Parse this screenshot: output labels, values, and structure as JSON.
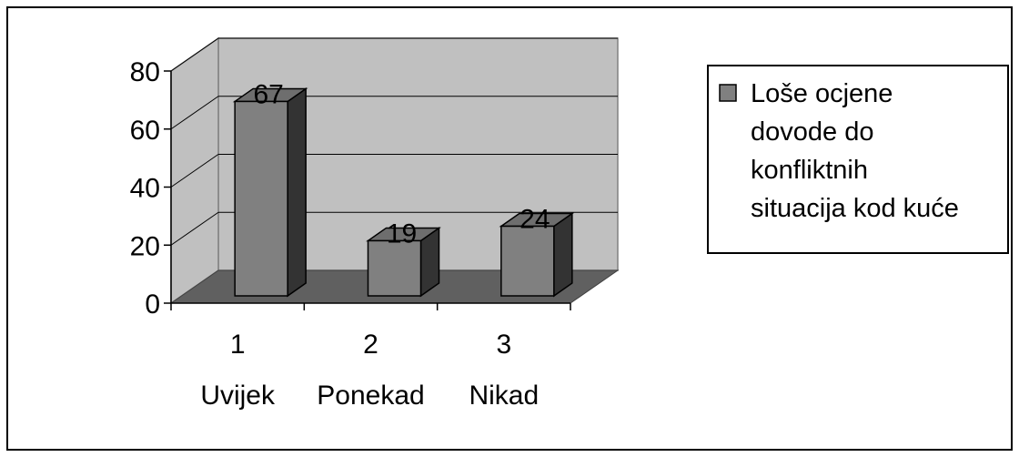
{
  "chart_data": {
    "type": "bar",
    "categories": [
      "1",
      "2",
      "3"
    ],
    "category_sublabels": [
      "Uvijek",
      "Ponekad",
      "Nikad"
    ],
    "series": [
      {
        "name": "Loše ocjene dovode do konfliktnih situacija kod kuće",
        "values": [
          67,
          19,
          24
        ]
      }
    ],
    "series_name_lines": [
      "Loše ocjene",
      "dovode do",
      "konfliktnih",
      "situacija kod kuće"
    ],
    "ylim": [
      0,
      80
    ],
    "yticks": [
      0,
      20,
      40,
      60,
      80
    ],
    "data_labels": [
      "67",
      "19",
      "24"
    ],
    "grid": true,
    "legend_position": "right",
    "three_d": true,
    "title": "",
    "xlabel": "",
    "ylabel": ""
  },
  "colors": {
    "bar_front": "#808080",
    "bar_side": "#333333",
    "bar_top": "#6e6e6e",
    "back_wall": "#c0c0c0",
    "side_wall": "#c0c0c0",
    "floor": "#606060"
  }
}
